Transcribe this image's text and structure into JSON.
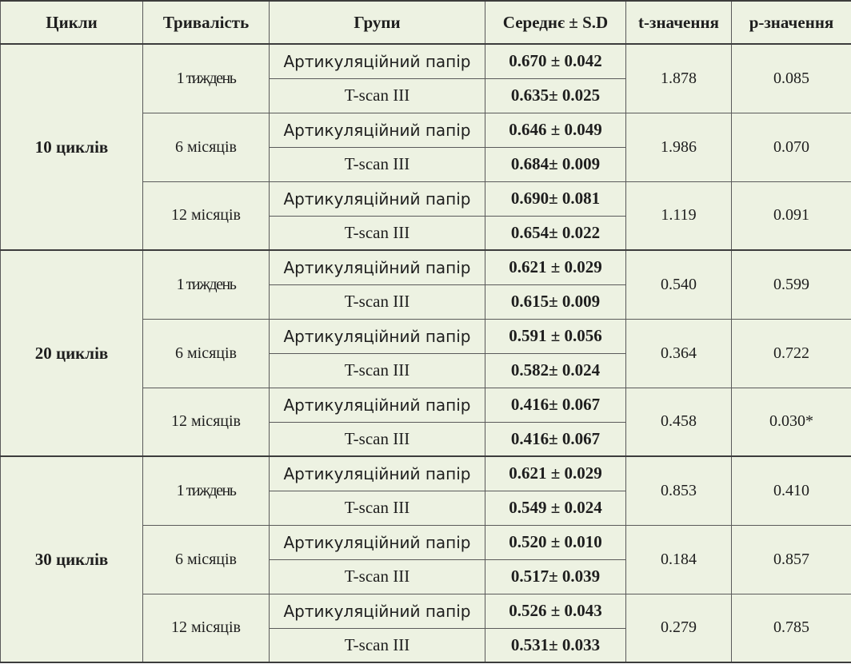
{
  "headers": {
    "cycles": "Цикли",
    "duration": "Тривалість",
    "groups": "Групи",
    "mean": "Середнє ± S.D",
    "t_value": "t-значення",
    "p_value": "p-значення"
  },
  "blocks": [
    {
      "cycles": "10 циклів",
      "periods": [
        {
          "duration": "1 тиждень",
          "paper_label": "Артикуляційний папір",
          "paper_mean": "0.670 ± 0.042",
          "tscan_label": "T-scan III",
          "tscan_mean": "0.635± 0.025",
          "t": "1.878",
          "p": "0.085"
        },
        {
          "duration": "6 місяців",
          "paper_label": "Артикуляційний папір",
          "paper_mean": "0.646 ± 0.049",
          "tscan_label": "T-scan III",
          "tscan_mean": "0.684± 0.009",
          "t": "1.986",
          "p": "0.070"
        },
        {
          "duration": "12 місяців",
          "paper_label": "Артикуляційний папір",
          "paper_mean": "0.690± 0.081",
          "tscan_label": "T-scan III",
          "tscan_mean": "0.654± 0.022",
          "t": "1.119",
          "p": "0.091"
        }
      ]
    },
    {
      "cycles": "20 циклів",
      "periods": [
        {
          "duration": "1 тиждень",
          "paper_label": "Артикуляційний папір",
          "paper_mean": "0.621 ± 0.029",
          "tscan_label": "T-scan III",
          "tscan_mean": "0.615± 0.009",
          "t": "0.540",
          "p": "0.599"
        },
        {
          "duration": "6 місяців",
          "paper_label": "Артикуляційний папір",
          "paper_mean": "0.591 ± 0.056",
          "tscan_label": "T-scan III",
          "tscan_mean": "0.582± 0.024",
          "t": "0.364",
          "p": "0.722"
        },
        {
          "duration": "12 місяців",
          "paper_label": "Артикуляційний папір",
          "paper_mean": "0.416± 0.067",
          "tscan_label": "T-scan III",
          "tscan_mean": "0.416± 0.067",
          "t": "0.458",
          "p": "0.030*"
        }
      ]
    },
    {
      "cycles": "30 циклів",
      "periods": [
        {
          "duration": "1 тиждень",
          "paper_label": "Артикуляційний папір",
          "paper_mean": "0.621 ± 0.029",
          "tscan_label": "T-scan III",
          "tscan_mean": "0.549 ± 0.024",
          "t": "0.853",
          "p": "0.410"
        },
        {
          "duration": "6 місяців",
          "paper_label": "Артикуляційний папір",
          "paper_mean": "0.520 ± 0.010",
          "tscan_label": "T-scan III",
          "tscan_mean": "0.517± 0.039",
          "t": "0.184",
          "p": "0.857"
        },
        {
          "duration": "12 місяців",
          "paper_label": "Артикуляційний папір",
          "paper_mean": "0.526 ± 0.043",
          "tscan_label": "T-scan III",
          "tscan_mean": "0.531± 0.033",
          "t": "0.279",
          "p": "0.785"
        }
      ]
    }
  ]
}
